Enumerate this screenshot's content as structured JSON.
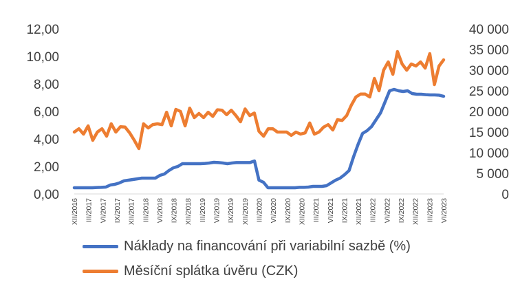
{
  "chart_data": {
    "type": "line",
    "x_tick_labels": [
      "XII/2016",
      "III/2017",
      "VI/2017",
      "IX/2017",
      "XII/2017",
      "III/2018",
      "VI/2018",
      "IX/2018",
      "XII/2018",
      "III/2019",
      "VI/2019",
      "IX/2019",
      "XII/2019",
      "III/2020",
      "VI/2020",
      "IX/2020",
      "XII/2020",
      "III/2021",
      "VI/2021",
      "IX/2021",
      "XII/2021",
      "III/2022",
      "VI/2022",
      "IX/2022",
      "XII/2022",
      "III/2023",
      "VI/2023"
    ],
    "y_left": {
      "lim": [
        0,
        12
      ],
      "ticks": [
        "0,00",
        "2,00",
        "4,00",
        "6,00",
        "8,00",
        "10,00",
        "12,00"
      ]
    },
    "y_right": {
      "lim": [
        0,
        40000
      ],
      "ticks": [
        "0",
        "5 000",
        "10 000",
        "15 000",
        "20 000",
        "25 000",
        "30 000",
        "35 000",
        "40 000"
      ]
    },
    "series": [
      {
        "name": "Náklady na financování při variabilní sazbě (%)",
        "axis": "left",
        "color": "#4472C4",
        "values": [
          0.45,
          0.45,
          0.45,
          0.45,
          0.45,
          0.47,
          0.48,
          0.5,
          0.65,
          0.7,
          0.8,
          0.95,
          1.0,
          1.05,
          1.1,
          1.15,
          1.15,
          1.15,
          1.15,
          1.35,
          1.45,
          1.7,
          1.9,
          2.0,
          2.2,
          2.2,
          2.2,
          2.2,
          2.2,
          2.22,
          2.25,
          2.3,
          2.28,
          2.25,
          2.2,
          2.25,
          2.28,
          2.28,
          2.28,
          2.28,
          2.4,
          1.0,
          0.85,
          0.45,
          0.45,
          0.45,
          0.45,
          0.45,
          0.45,
          0.45,
          0.48,
          0.48,
          0.5,
          0.55,
          0.55,
          0.55,
          0.6,
          0.8,
          1.0,
          1.15,
          1.4,
          1.7,
          2.7,
          3.6,
          4.4,
          4.6,
          4.9,
          5.4,
          5.9,
          6.7,
          7.5,
          7.6,
          7.5,
          7.45,
          7.5,
          7.3,
          7.25,
          7.25,
          7.22,
          7.2,
          7.2,
          7.18,
          7.1
        ]
      },
      {
        "name": "Měsíční splátka úvěru (CZK)",
        "axis": "right",
        "color": "#ED7D31",
        "values": [
          15000,
          15800,
          14500,
          16500,
          13000,
          15000,
          15800,
          14000,
          17000,
          15000,
          16300,
          16200,
          14800,
          13000,
          11000,
          17000,
          16000,
          16800,
          17000,
          16800,
          19800,
          16500,
          20500,
          20000,
          16500,
          20800,
          18500,
          19500,
          18500,
          19800,
          18800,
          20400,
          20300,
          19200,
          20300,
          19000,
          17500,
          20600,
          19000,
          19600,
          15200,
          14000,
          15800,
          15800,
          15000,
          15000,
          15000,
          14200,
          15000,
          14500,
          14800,
          17200,
          14500,
          15000,
          16200,
          16800,
          15500,
          18000,
          17800,
          19000,
          21500,
          23500,
          24200,
          24200,
          23500,
          28000,
          25000,
          30000,
          32000,
          29000,
          34500,
          31500,
          30000,
          31500,
          31000,
          32000,
          30500,
          34000,
          26500,
          31000,
          32500
        ]
      }
    ]
  }
}
